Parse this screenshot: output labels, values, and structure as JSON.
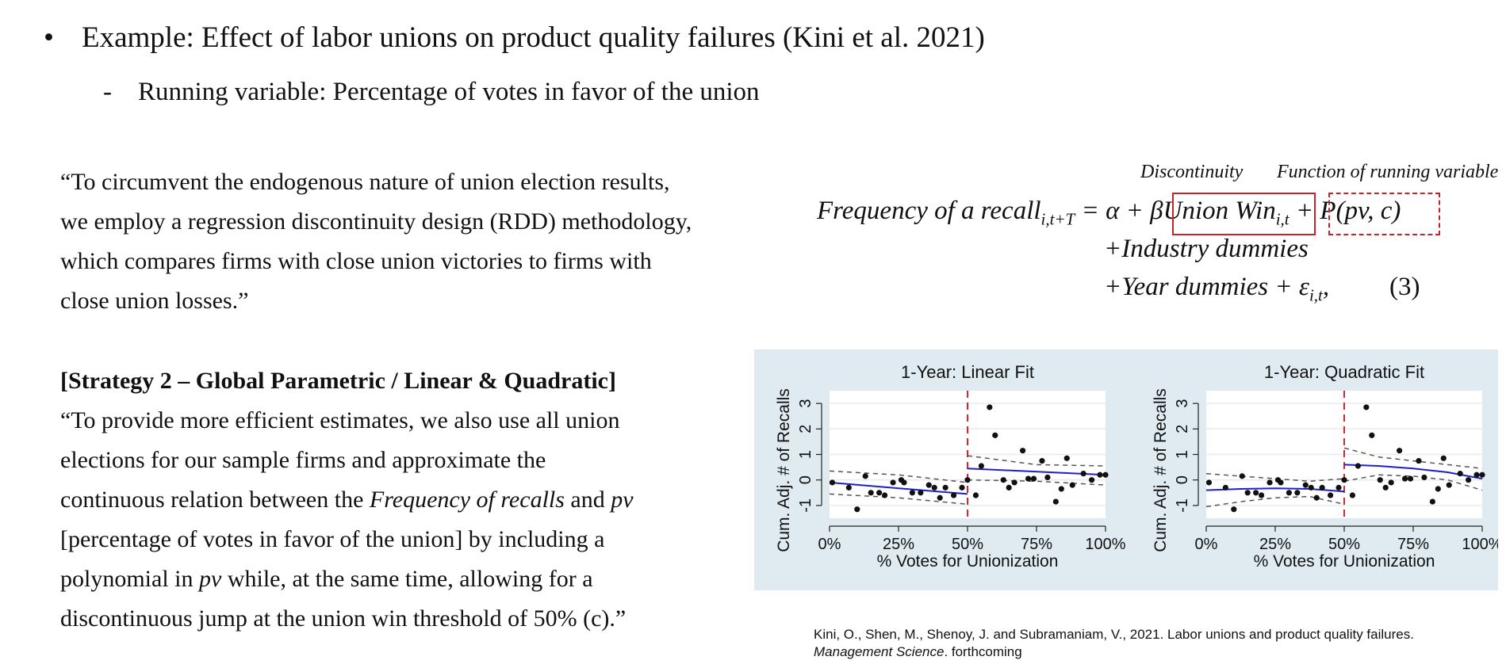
{
  "slide": {
    "bullet_main": "Example: Effect of labor unions on product quality failures (Kini et al. 2021)",
    "bullet_sub": "Running variable: Percentage of votes in favor of the union",
    "quote1": "“To circumvent the endogenous nature of union election results, we employ a regression discontinuity design (RDD) methodology, which compares firms with close union victories to firms with close union losses.”",
    "strategy_heading": "[Strategy 2 – Global Parametric / Linear & Quadratic]",
    "quote2": {
      "l1": "“To provide more efficient estimates, we also use all union",
      "l2": "elections for our sample firms and approximate the",
      "l3_a": "continuous relation between the ",
      "l3_b": "Frequency of recalls",
      "l3_c": " and ",
      "l3_d": "pv",
      "l4": "[percentage of votes in favor of the union] by including a",
      "l5_a": "polynomial in ",
      "l5_b": "pv",
      "l5_c": " while, at the same time, allowing for a",
      "l6": "discontinuous jump at the union win threshold of 50% (c).”"
    },
    "equation": {
      "label_discontinuity": "Discontinuity",
      "label_function": "Function of running variable",
      "lhs": "Frequency of a recall",
      "lhs_sub": "i,t+T",
      "eq_part": " = α + β",
      "union_win": "Union Win",
      "union_win_sub": "i,t",
      "plus": " + ",
      "p_term": "P(pv,  c)",
      "line2": "+Industry dummies",
      "line3": "+Year dummies + ε",
      "line3_sub": "i,t",
      "line3_end": ",",
      "number": "(3)"
    },
    "citation": {
      "line1": "Kini, O., Shen, M., Shenoy, J. and Subramaniam, V., 2021. Labor unions and product quality failures.",
      "journal": "Management Science",
      "rest": ". forthcoming"
    }
  },
  "colors": {
    "box_red": "#c0242c",
    "chart_bg": "#dfebf0",
    "fit_line": "#1f1fcc",
    "cutoff": "#d6262e"
  },
  "chart_data": [
    {
      "type": "scatter",
      "title": "1-Year: Linear Fit",
      "xlabel": "% Votes for Unionization",
      "ylabel": "Cum. Adj. # of Recalls",
      "xlim": [
        0,
        1
      ],
      "ylim": [
        -1.5,
        3.5
      ],
      "xticks": [
        "0%",
        "25%",
        "50%",
        "75%",
        "100%"
      ],
      "xtick_values": [
        0,
        0.25,
        0.5,
        0.75,
        1.0
      ],
      "yticks": [
        "-1",
        "0",
        "1",
        "2",
        "3"
      ],
      "ytick_values": [
        -1,
        0,
        1,
        2,
        3
      ],
      "cutoff": 0.5,
      "points": [
        [
          0.01,
          -0.1
        ],
        [
          0.07,
          -0.3
        ],
        [
          0.1,
          -1.15
        ],
        [
          0.13,
          0.15
        ],
        [
          0.15,
          -0.5
        ],
        [
          0.18,
          -0.5
        ],
        [
          0.2,
          -0.6
        ],
        [
          0.23,
          -0.1
        ],
        [
          0.26,
          0.0
        ],
        [
          0.27,
          -0.1
        ],
        [
          0.3,
          -0.5
        ],
        [
          0.33,
          -0.5
        ],
        [
          0.36,
          -0.2
        ],
        [
          0.38,
          -0.3
        ],
        [
          0.4,
          -0.7
        ],
        [
          0.42,
          -0.3
        ],
        [
          0.45,
          -0.6
        ],
        [
          0.48,
          -0.3
        ],
        [
          0.5,
          0.0
        ],
        [
          0.53,
          -0.6
        ],
        [
          0.55,
          0.55
        ],
        [
          0.58,
          2.85
        ],
        [
          0.6,
          1.75
        ],
        [
          0.63,
          0.0
        ],
        [
          0.65,
          -0.3
        ],
        [
          0.67,
          -0.1
        ],
        [
          0.7,
          1.15
        ],
        [
          0.72,
          0.05
        ],
        [
          0.74,
          0.05
        ],
        [
          0.77,
          0.75
        ],
        [
          0.79,
          0.1
        ],
        [
          0.82,
          -0.85
        ],
        [
          0.84,
          -0.35
        ],
        [
          0.86,
          0.85
        ],
        [
          0.88,
          -0.2
        ],
        [
          0.92,
          0.25
        ],
        [
          0.95,
          0.0
        ],
        [
          0.98,
          0.2
        ],
        [
          1.0,
          0.2
        ]
      ],
      "fit_left": [
        [
          0.0,
          -0.1
        ],
        [
          0.5,
          -0.55
        ]
      ],
      "fit_right": [
        [
          0.5,
          0.45
        ],
        [
          1.0,
          0.2
        ]
      ],
      "ci_left_upper": [
        [
          0.0,
          0.35
        ],
        [
          0.25,
          0.2
        ],
        [
          0.5,
          -0.1
        ]
      ],
      "ci_left_lower": [
        [
          0.0,
          -0.55
        ],
        [
          0.25,
          -0.7
        ],
        [
          0.5,
          -0.95
        ]
      ],
      "ci_right_upper": [
        [
          0.5,
          0.95
        ],
        [
          0.75,
          0.6
        ],
        [
          1.0,
          0.55
        ]
      ],
      "ci_right_lower": [
        [
          0.5,
          0.0
        ],
        [
          0.75,
          -0.05
        ],
        [
          1.0,
          -0.2
        ]
      ]
    },
    {
      "type": "scatter",
      "title": "1-Year: Quadratic Fit",
      "xlabel": "% Votes for Unionization",
      "ylabel": "Cum. Adj. # of Recalls",
      "xlim": [
        0,
        1
      ],
      "ylim": [
        -1.5,
        3.5
      ],
      "xticks": [
        "0%",
        "25%",
        "50%",
        "75%",
        "100%"
      ],
      "xtick_values": [
        0,
        0.25,
        0.5,
        0.75,
        1.0
      ],
      "yticks": [
        "-1",
        "0",
        "1",
        "2",
        "3"
      ],
      "ytick_values": [
        -1,
        0,
        1,
        2,
        3
      ],
      "cutoff": 0.5,
      "points": [
        [
          0.01,
          -0.1
        ],
        [
          0.07,
          -0.3
        ],
        [
          0.1,
          -1.15
        ],
        [
          0.13,
          0.15
        ],
        [
          0.15,
          -0.5
        ],
        [
          0.18,
          -0.5
        ],
        [
          0.2,
          -0.6
        ],
        [
          0.23,
          -0.1
        ],
        [
          0.26,
          0.0
        ],
        [
          0.27,
          -0.1
        ],
        [
          0.3,
          -0.5
        ],
        [
          0.33,
          -0.5
        ],
        [
          0.36,
          -0.2
        ],
        [
          0.38,
          -0.3
        ],
        [
          0.4,
          -0.7
        ],
        [
          0.42,
          -0.3
        ],
        [
          0.45,
          -0.6
        ],
        [
          0.48,
          -0.3
        ],
        [
          0.5,
          0.0
        ],
        [
          0.53,
          -0.6
        ],
        [
          0.55,
          0.55
        ],
        [
          0.58,
          2.85
        ],
        [
          0.6,
          1.75
        ],
        [
          0.63,
          0.0
        ],
        [
          0.65,
          -0.3
        ],
        [
          0.67,
          -0.1
        ],
        [
          0.7,
          1.15
        ],
        [
          0.72,
          0.05
        ],
        [
          0.74,
          0.05
        ],
        [
          0.77,
          0.75
        ],
        [
          0.79,
          0.1
        ],
        [
          0.82,
          -0.85
        ],
        [
          0.84,
          -0.35
        ],
        [
          0.86,
          0.85
        ],
        [
          0.88,
          -0.2
        ],
        [
          0.92,
          0.25
        ],
        [
          0.95,
          0.0
        ],
        [
          0.98,
          0.2
        ],
        [
          1.0,
          0.2
        ]
      ],
      "fit_left": [
        [
          0.0,
          -0.4
        ],
        [
          0.125,
          -0.35
        ],
        [
          0.25,
          -0.33
        ],
        [
          0.375,
          -0.35
        ],
        [
          0.5,
          -0.45
        ]
      ],
      "fit_right": [
        [
          0.5,
          0.6
        ],
        [
          0.625,
          0.55
        ],
        [
          0.75,
          0.45
        ],
        [
          0.875,
          0.3
        ],
        [
          1.0,
          0.05
        ]
      ],
      "ci_left_upper": [
        [
          0.0,
          0.25
        ],
        [
          0.125,
          0.15
        ],
        [
          0.25,
          0.05
        ],
        [
          0.375,
          -0.05
        ],
        [
          0.5,
          0.05
        ]
      ],
      "ci_left_lower": [
        [
          0.0,
          -1.05
        ],
        [
          0.125,
          -0.85
        ],
        [
          0.25,
          -0.7
        ],
        [
          0.375,
          -0.65
        ],
        [
          0.5,
          -0.95
        ]
      ],
      "ci_right_upper": [
        [
          0.5,
          1.25
        ],
        [
          0.625,
          0.9
        ],
        [
          0.75,
          0.75
        ],
        [
          0.875,
          0.6
        ],
        [
          1.0,
          0.45
        ]
      ],
      "ci_right_lower": [
        [
          0.5,
          -0.05
        ],
        [
          0.625,
          0.2
        ],
        [
          0.75,
          0.15
        ],
        [
          0.875,
          0.0
        ],
        [
          1.0,
          -0.4
        ]
      ]
    }
  ]
}
